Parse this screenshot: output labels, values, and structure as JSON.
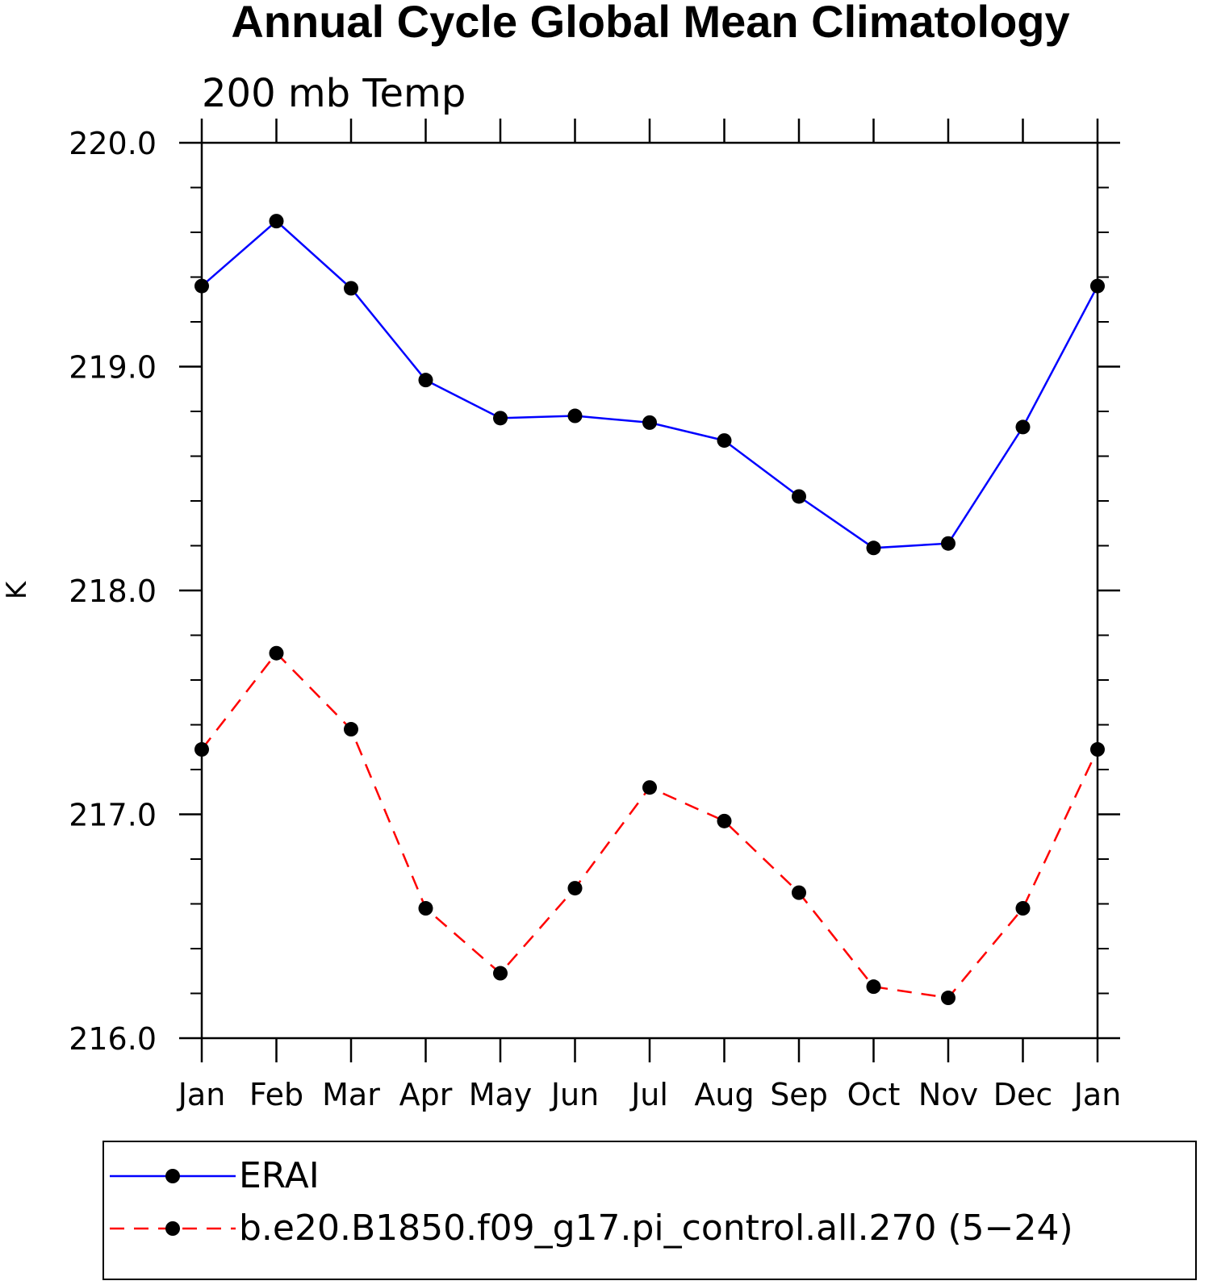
{
  "chart_data": {
    "type": "line",
    "title": "Annual Cycle Global Mean Climatology",
    "subtitle": "200 mb Temp",
    "xlabel": "",
    "ylabel": "K",
    "categories": [
      "Jan",
      "Feb",
      "Mar",
      "Apr",
      "May",
      "Jun",
      "Jul",
      "Aug",
      "Sep",
      "Oct",
      "Nov",
      "Dec",
      "Jan"
    ],
    "ylim": [
      216.0,
      220.0
    ],
    "yticks": [
      "216.0",
      "217.0",
      "218.0",
      "219.0",
      "220.0"
    ],
    "grid": false,
    "legend_position": "bottom",
    "series": [
      {
        "name": "ERAI",
        "color": "#0000ff",
        "line_style": "solid",
        "marker": "filled-circle",
        "values": [
          219.36,
          219.65,
          219.35,
          218.94,
          218.77,
          218.78,
          218.75,
          218.67,
          218.42,
          218.19,
          218.21,
          218.73,
          219.36
        ]
      },
      {
        "name": "b.e20.B1850.f09_g17.pi_control.all.270 (5−24)",
        "color": "#ff0000",
        "line_style": "dashed",
        "marker": "filled-circle",
        "values": [
          217.29,
          217.72,
          217.38,
          216.58,
          216.29,
          216.67,
          217.12,
          216.97,
          216.65,
          216.23,
          216.18,
          216.58,
          217.29
        ]
      }
    ]
  }
}
